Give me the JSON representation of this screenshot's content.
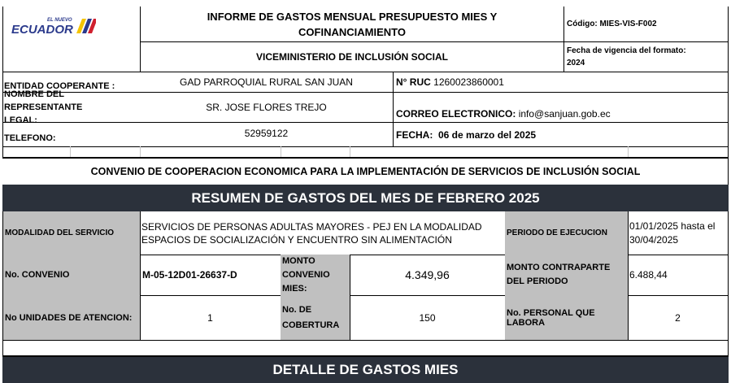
{
  "logo": {
    "text": "ECUADOR",
    "small": "EL NUEVO"
  },
  "header": {
    "title": "INFORME DE GASTOS MENSUAL PRESUPUESTO MIES Y COFINANCIAMIENTO",
    "subtitle": "VICEMINISTERIO DE INCLUSIÓN SOCIAL",
    "code": "Código: MIES-VIS-F002",
    "validity": "Fecha de vigencia del formato: 2024"
  },
  "info": {
    "entity_label": "ENTIDAD COOPERANTE :",
    "entity_value": "GAD PARROQUIAL RURAL SAN JUAN",
    "ruc_label": "N° RUC",
    "ruc_value": "1260023860001",
    "rep_label": "NOMBRE DEL REPRESENTANTE LEGAL:",
    "rep_value": "SR. JOSE FLORES TREJO",
    "email_label": "CORREO ELECTRONICO:",
    "email_value": "info@sanjuan.gob.ec",
    "phone_label": "TELEFONO:",
    "phone_value": "52959122",
    "date_label": "FECHA:",
    "date_value": "06 de marzo del 2025"
  },
  "convenio_title": "CONVENIO DE COOPERACION ECONOMICA PARA LA IMPLEMENTACIÓN DE SERVICIOS DE INCLUSIÓN SOCIAL",
  "summary": {
    "title": "RESUMEN DE GASTOS  DEL MES DE FEBRERO 2025",
    "modalidad_label": "MODALIDAD DEL SERVICIO",
    "modalidad_value": "SERVICIOS DE PERSONAS ADULTAS MAYORES - PEJ EN LA MODALIDAD ESPACIOS DE SOCIALIZACIÓN Y ENCUENTRO SIN ALIMENTACIÓN",
    "periodo_label": "PERIODO DE EJECUCION",
    "periodo_value": "01/01/2025 hasta el 30/04/2025",
    "convenio_label": "No. CONVENIO",
    "convenio_value": "M-05-12D01-26637-D",
    "monto_label": "MONTO CONVENIO MIES:",
    "monto_value": "4.349,96",
    "contraparte_label": "MONTO CONTRAPARTE DEL PERIODO",
    "contraparte_value": "6.488,44",
    "unidades_label": "No UNIDADES DE ATENCION:",
    "unidades_value": "1",
    "cobertura_label": "No. DE COBERTURA",
    "cobertura_value": "150",
    "personal_label": "No. PERSONAL QUE LABORA",
    "personal_value": "2"
  },
  "detail_title": "DETALLE DE GASTOS  MIES"
}
